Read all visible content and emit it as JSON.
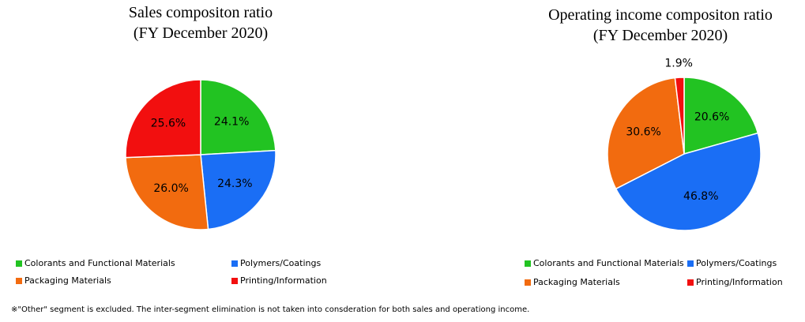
{
  "chart_data": [
    {
      "type": "pie",
      "title": "Sales compositon ratio",
      "subtitle": "(FY December 2020)",
      "categories": [
        "Colorants and Functional Materials",
        "Polymers/Coatings",
        "Packaging Materials",
        "Printing/Information"
      ],
      "values": [
        24.1,
        24.3,
        26.0,
        25.6
      ],
      "value_labels": [
        "24.1%",
        "24.3%",
        "26.0%",
        "25.6%"
      ],
      "colors": [
        "#22c322",
        "#1a6ef5",
        "#f26b0f",
        "#f20f0f"
      ]
    },
    {
      "type": "pie",
      "title": "Operating income compositon  ratio",
      "subtitle": "(FY December 2020)",
      "categories": [
        "Colorants and Functional Materials",
        "Polymers/Coatings",
        "Packaging Materials",
        "Printing/Information"
      ],
      "values": [
        20.6,
        46.8,
        30.6,
        1.9
      ],
      "value_labels": [
        "20.6%",
        "46.8%",
        "30.6%",
        "1.9%"
      ],
      "colors": [
        "#22c322",
        "#1a6ef5",
        "#f26b0f",
        "#f20f0f"
      ]
    }
  ],
  "footnote": "※\"Other\" segment is excluded. The inter-segment elimination is not taken into consderation for both sales and operationg income."
}
